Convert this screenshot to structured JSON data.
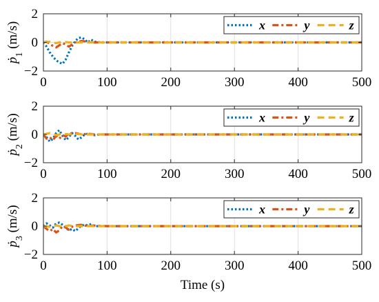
{
  "colors": {
    "x": "#0072BD",
    "y": "#D95319",
    "z": "#EDB120",
    "grid": "#dfdfdf",
    "axis": "#262626"
  },
  "chart_data": [
    {
      "type": "line",
      "ylabel_symbol": "ṗ",
      "ylabel_subscript": "1",
      "ylabel_unit": " (m/s)",
      "xlabel": "",
      "xlim": [
        0,
        500
      ],
      "ylim": [
        -2,
        2
      ],
      "xticks": [
        0,
        100,
        200,
        300,
        400,
        500
      ],
      "yticks": [
        -2,
        0,
        2
      ],
      "grid": true,
      "legend_position": "top-right",
      "series": [
        {
          "name": "x",
          "style": "dotted",
          "x": [
            0,
            5,
            10,
            15,
            20,
            25,
            30,
            35,
            40,
            45,
            50,
            55,
            60,
            65,
            70,
            75,
            80,
            90,
            100,
            500
          ],
          "y": [
            0.0,
            -0.3,
            -0.7,
            -1.0,
            -1.25,
            -1.4,
            -1.5,
            -1.2,
            -0.7,
            -0.25,
            0.1,
            0.3,
            0.35,
            0.2,
            0.0,
            0.2,
            0.05,
            0.0,
            0.0,
            0.0
          ]
        },
        {
          "name": "y",
          "style": "dashdot",
          "x": [
            0,
            5,
            10,
            15,
            20,
            25,
            30,
            35,
            40,
            45,
            50,
            60,
            70,
            80,
            100,
            500
          ],
          "y": [
            0.0,
            0.05,
            -0.1,
            -0.25,
            -0.35,
            -0.2,
            -0.05,
            -0.15,
            -0.3,
            -0.15,
            0.0,
            0.1,
            0.05,
            0.0,
            0.0,
            0.0
          ]
        },
        {
          "name": "z",
          "style": "dashed",
          "x": [
            0,
            10,
            20,
            30,
            40,
            50,
            500
          ],
          "y": [
            0.0,
            0.05,
            -0.05,
            0.05,
            0.0,
            0.0,
            0.0
          ]
        }
      ]
    },
    {
      "type": "line",
      "ylabel_symbol": "ṗ",
      "ylabel_subscript": "2",
      "ylabel_unit": " (m/s)",
      "xlabel": "",
      "xlim": [
        0,
        500
      ],
      "ylim": [
        -2,
        2
      ],
      "xticks": [
        0,
        100,
        200,
        300,
        400,
        500
      ],
      "yticks": [
        -2,
        0,
        2
      ],
      "grid": true,
      "legend_position": "top-right",
      "series": [
        {
          "name": "x",
          "style": "dotted",
          "x": [
            0,
            5,
            10,
            15,
            20,
            25,
            30,
            35,
            40,
            45,
            50,
            55,
            60,
            65,
            70,
            80,
            90,
            100,
            500
          ],
          "y": [
            0.0,
            -0.2,
            -0.5,
            -0.3,
            0.1,
            0.3,
            -0.1,
            -0.4,
            -0.2,
            0.1,
            -0.1,
            -0.35,
            -0.2,
            0.0,
            0.05,
            -0.05,
            0.0,
            0.0,
            0.0
          ]
        },
        {
          "name": "y",
          "style": "dashdot",
          "x": [
            0,
            5,
            10,
            15,
            20,
            25,
            30,
            35,
            40,
            50,
            60,
            70,
            80,
            100,
            500
          ],
          "y": [
            0.0,
            -0.3,
            -0.2,
            -0.4,
            -0.1,
            -0.3,
            -0.05,
            -0.15,
            0.05,
            0.1,
            0.0,
            0.05,
            0.0,
            0.0,
            0.0
          ]
        },
        {
          "name": "z",
          "style": "dashed",
          "x": [
            0,
            10,
            20,
            30,
            40,
            50,
            60,
            500
          ],
          "y": [
            0.0,
            0.1,
            -0.05,
            0.05,
            0.0,
            0.05,
            0.0,
            0.0
          ]
        }
      ]
    },
    {
      "type": "line",
      "ylabel_symbol": "ṗ",
      "ylabel_subscript": "3",
      "ylabel_unit": " (m/s)",
      "xlabel": "Time (s)",
      "xlim": [
        0,
        500
      ],
      "ylim": [
        -2,
        2
      ],
      "xticks": [
        0,
        100,
        200,
        300,
        400,
        500
      ],
      "yticks": [
        -2,
        0,
        2
      ],
      "grid": true,
      "legend_position": "top-right",
      "series": [
        {
          "name": "x",
          "style": "dotted",
          "x": [
            0,
            5,
            10,
            15,
            20,
            25,
            30,
            35,
            40,
            45,
            50,
            55,
            60,
            65,
            70,
            75,
            80,
            100,
            500
          ],
          "y": [
            0.0,
            0.2,
            0.05,
            -0.1,
            0.2,
            0.25,
            0.1,
            -0.1,
            -0.3,
            -0.2,
            -0.35,
            -0.15,
            0.05,
            0.1,
            0.05,
            0.15,
            0.0,
            0.0,
            0.0
          ]
        },
        {
          "name": "y",
          "style": "dashdot",
          "x": [
            0,
            5,
            10,
            15,
            20,
            25,
            30,
            35,
            40,
            45,
            50,
            60,
            70,
            80,
            100,
            500
          ],
          "y": [
            0.0,
            -0.2,
            -0.35,
            -0.2,
            -0.45,
            -0.3,
            0.0,
            -0.1,
            -0.25,
            -0.05,
            0.05,
            0.1,
            0.0,
            0.05,
            0.0,
            0.0
          ]
        },
        {
          "name": "z",
          "style": "dashed",
          "x": [
            0,
            10,
            20,
            30,
            40,
            50,
            500
          ],
          "y": [
            0.0,
            -0.05,
            0.05,
            -0.05,
            0.05,
            0.0,
            0.0
          ]
        }
      ]
    }
  ]
}
